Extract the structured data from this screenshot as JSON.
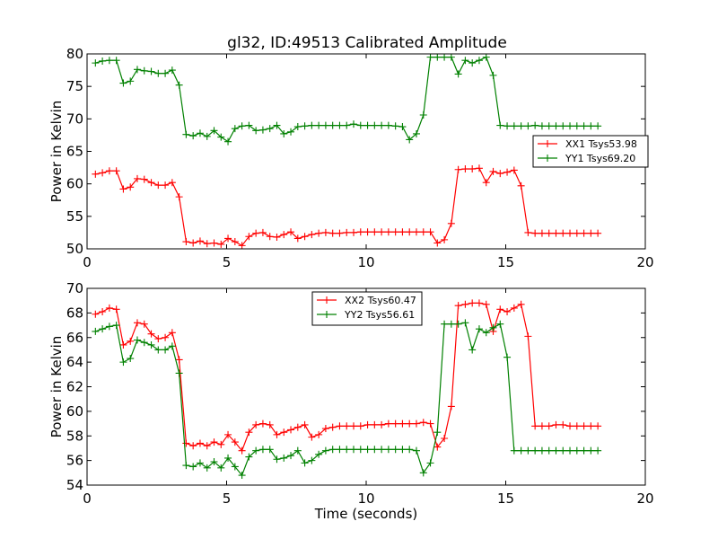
{
  "figure": {
    "title": "gl32, ID:49513 Calibrated Amplitude"
  },
  "chart_data": [
    {
      "type": "line",
      "title": "gl32, ID:49513 Calibrated Amplitude",
      "xlabel": "",
      "ylabel": "Power in Kelvin",
      "xlim": [
        0,
        20
      ],
      "ylim": [
        50,
        80
      ],
      "xticks": [
        0,
        5,
        10,
        15,
        20
      ],
      "yticks": [
        50,
        55,
        60,
        65,
        70,
        75,
        80
      ],
      "grid": false,
      "legend_position": "center-right",
      "x": [
        0.3,
        0.55,
        0.8,
        1.05,
        1.3,
        1.55,
        1.8,
        2.05,
        2.3,
        2.55,
        2.8,
        3.05,
        3.3,
        3.55,
        3.8,
        4.05,
        4.3,
        4.55,
        4.8,
        5.05,
        5.3,
        5.55,
        5.8,
        6.05,
        6.3,
        6.55,
        6.8,
        7.05,
        7.3,
        7.55,
        7.8,
        8.05,
        8.3,
        8.55,
        8.8,
        9.05,
        9.3,
        9.55,
        9.8,
        10.05,
        10.3,
        10.55,
        10.8,
        11.05,
        11.3,
        11.55,
        11.8,
        12.05,
        12.3,
        12.55,
        12.8,
        13.05,
        13.3,
        13.55,
        13.8,
        14.05,
        14.3,
        14.55,
        14.8,
        15.05,
        15.3,
        15.55,
        15.8,
        16.05,
        16.3,
        16.55,
        16.8,
        17.05,
        17.3,
        17.55,
        17.8,
        18.05,
        18.3
      ],
      "series": [
        {
          "name": "XX1 Tsys53.98",
          "color": "#ff0000",
          "values": [
            61.5,
            61.7,
            62.0,
            62.0,
            59.2,
            59.5,
            60.8,
            60.7,
            60.2,
            59.8,
            59.8,
            60.2,
            58.0,
            51.1,
            50.9,
            51.2,
            50.8,
            50.9,
            50.7,
            51.6,
            51.1,
            50.5,
            51.9,
            52.4,
            52.5,
            51.9,
            51.8,
            52.2,
            52.6,
            51.6,
            51.9,
            52.2,
            52.4,
            52.5,
            52.4,
            52.4,
            52.5,
            52.5,
            52.6,
            52.6,
            52.6,
            52.6,
            52.6,
            52.6,
            52.6,
            52.6,
            52.6,
            52.6,
            52.6,
            50.9,
            51.4,
            53.9,
            62.2,
            62.3,
            62.3,
            62.4,
            60.2,
            61.9,
            61.6,
            61.8,
            62.1,
            59.7,
            52.5,
            52.4,
            52.4,
            52.4,
            52.4,
            52.4,
            52.4,
            52.4,
            52.4,
            52.4,
            52.4
          ]
        },
        {
          "name": "YY1 Tsys69.20",
          "color": "#008000",
          "values": [
            78.6,
            78.9,
            79.0,
            79.0,
            75.5,
            75.8,
            77.6,
            77.4,
            77.3,
            77.0,
            77.0,
            77.5,
            75.2,
            67.6,
            67.4,
            67.8,
            67.3,
            68.2,
            67.2,
            66.5,
            68.5,
            68.9,
            69.0,
            68.2,
            68.3,
            68.5,
            69.0,
            67.7,
            68.0,
            68.8,
            68.9,
            69.0,
            69.0,
            69.0,
            69.0,
            69.0,
            69.0,
            69.2,
            69.0,
            69.0,
            69.0,
            69.0,
            69.0,
            68.9,
            68.8,
            66.8,
            67.7,
            70.6,
            79.5,
            79.5,
            79.5,
            79.5,
            76.9,
            79.0,
            78.6,
            79.0,
            79.5,
            76.7,
            69.0,
            68.9,
            68.9,
            68.9,
            68.9,
            69.0,
            68.9,
            68.9,
            68.9,
            68.9,
            68.9,
            68.9,
            68.9,
            68.9,
            68.9
          ]
        }
      ]
    },
    {
      "type": "line",
      "title": "",
      "xlabel": "Time (seconds)",
      "ylabel": "Power in Kelvin",
      "xlim": [
        0,
        20
      ],
      "ylim": [
        54,
        70
      ],
      "xticks": [
        0,
        5,
        10,
        15,
        20
      ],
      "yticks": [
        54,
        56,
        58,
        60,
        62,
        64,
        66,
        68,
        70
      ],
      "grid": false,
      "legend_position": "top-center",
      "x": [
        0.3,
        0.55,
        0.8,
        1.05,
        1.3,
        1.55,
        1.8,
        2.05,
        2.3,
        2.55,
        2.8,
        3.05,
        3.3,
        3.55,
        3.8,
        4.05,
        4.3,
        4.55,
        4.8,
        5.05,
        5.3,
        5.55,
        5.8,
        6.05,
        6.3,
        6.55,
        6.8,
        7.05,
        7.3,
        7.55,
        7.8,
        8.05,
        8.3,
        8.55,
        8.8,
        9.05,
        9.3,
        9.55,
        9.8,
        10.05,
        10.3,
        10.55,
        10.8,
        11.05,
        11.3,
        11.55,
        11.8,
        12.05,
        12.3,
        12.55,
        12.8,
        13.05,
        13.3,
        13.55,
        13.8,
        14.05,
        14.3,
        14.55,
        14.8,
        15.05,
        15.3,
        15.55,
        15.8,
        16.05,
        16.3,
        16.55,
        16.8,
        17.05,
        17.3,
        17.55,
        17.8,
        18.05,
        18.3
      ],
      "series": [
        {
          "name": "XX2 Tsys60.47",
          "color": "#ff0000",
          "values": [
            67.9,
            68.1,
            68.4,
            68.3,
            65.4,
            65.7,
            67.2,
            67.1,
            66.3,
            65.9,
            66.0,
            66.4,
            64.2,
            57.4,
            57.2,
            57.4,
            57.2,
            57.5,
            57.3,
            58.1,
            57.5,
            56.8,
            58.3,
            58.9,
            59.0,
            58.9,
            58.1,
            58.3,
            58.5,
            58.7,
            58.9,
            57.9,
            58.1,
            58.6,
            58.7,
            58.8,
            58.8,
            58.8,
            58.8,
            58.9,
            58.9,
            58.9,
            59.0,
            59.0,
            59.0,
            59.0,
            59.0,
            59.1,
            59.0,
            57.1,
            57.8,
            60.4,
            68.6,
            68.7,
            68.8,
            68.8,
            68.7,
            66.5,
            68.3,
            68.1,
            68.4,
            68.7,
            66.1,
            58.8,
            58.8,
            58.8,
            58.9,
            58.9,
            58.8,
            58.8,
            58.8,
            58.8,
            58.8
          ]
        },
        {
          "name": "YY2 Tsys56.61",
          "color": "#008000",
          "values": [
            66.5,
            66.7,
            66.9,
            67.0,
            64.0,
            64.3,
            65.8,
            65.6,
            65.4,
            65.0,
            65.0,
            65.3,
            63.1,
            55.6,
            55.5,
            55.8,
            55.4,
            55.9,
            55.4,
            56.2,
            55.5,
            54.8,
            56.3,
            56.8,
            56.9,
            56.9,
            56.1,
            56.2,
            56.4,
            56.8,
            55.8,
            56.0,
            56.5,
            56.8,
            56.9,
            56.9,
            56.9,
            56.9,
            56.9,
            56.9,
            56.9,
            56.9,
            56.9,
            56.9,
            56.9,
            56.9,
            56.8,
            55.0,
            55.8,
            58.3,
            67.1,
            67.1,
            67.1,
            67.2,
            65.0,
            66.7,
            66.4,
            66.8,
            67.1,
            64.4,
            56.8,
            56.8,
            56.8,
            56.8,
            56.8,
            56.8,
            56.8,
            56.8,
            56.8,
            56.8,
            56.8,
            56.8,
            56.8
          ]
        }
      ]
    }
  ]
}
